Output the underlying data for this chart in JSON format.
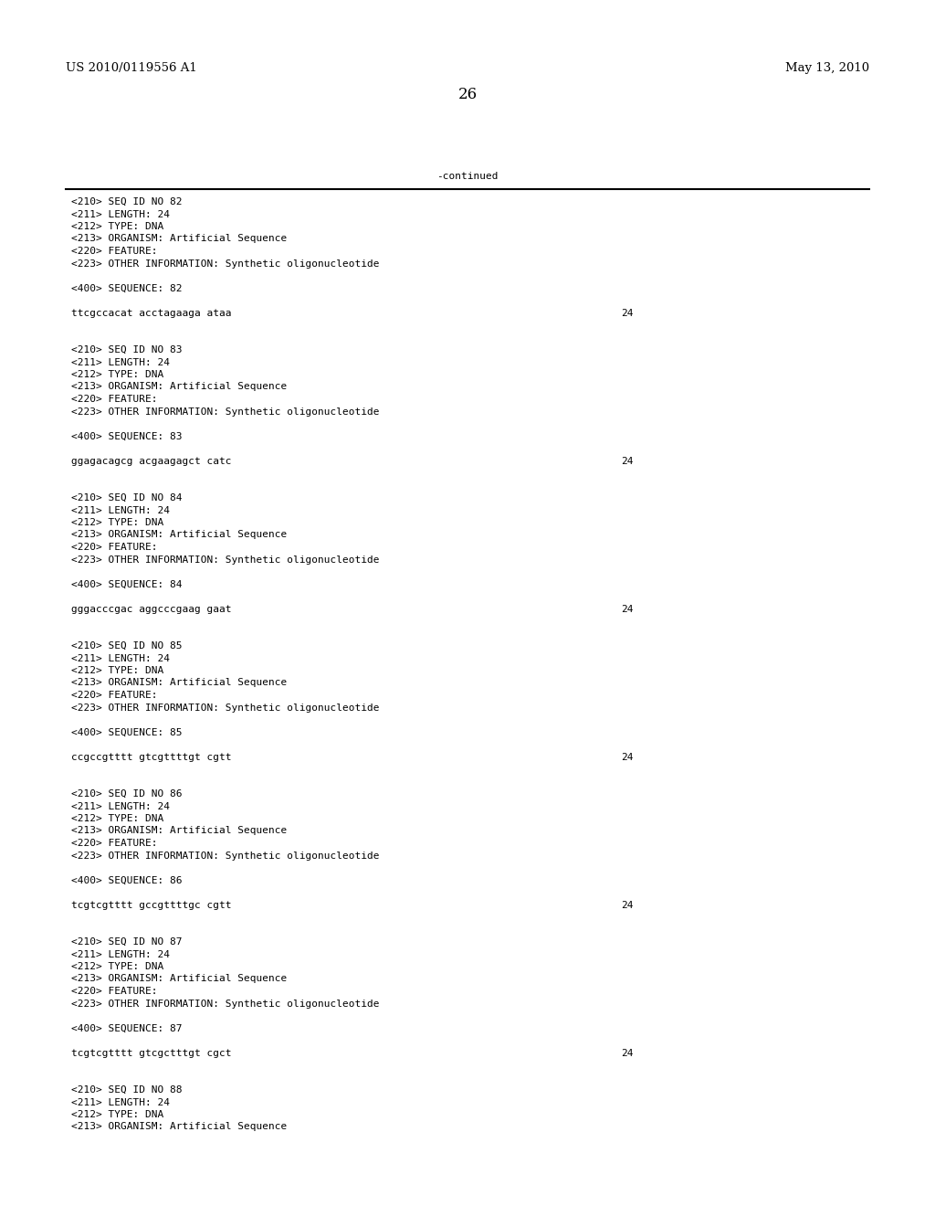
{
  "patent_left": "US 2010/0119556 A1",
  "patent_right": "May 13, 2010",
  "page_number": "26",
  "continued_label": "-continued",
  "background_color": "#ffffff",
  "text_color": "#000000",
  "header_fontsize": 9.5,
  "page_num_fontsize": 12,
  "body_fontsize": 8.0,
  "content": [
    {
      "text": "<210> SEQ ID NO 82",
      "seq_num": null
    },
    {
      "text": "<211> LENGTH: 24",
      "seq_num": null
    },
    {
      "text": "<212> TYPE: DNA",
      "seq_num": null
    },
    {
      "text": "<213> ORGANISM: Artificial Sequence",
      "seq_num": null
    },
    {
      "text": "<220> FEATURE:",
      "seq_num": null
    },
    {
      "text": "<223> OTHER INFORMATION: Synthetic oligonucleotide",
      "seq_num": null
    },
    {
      "text": "",
      "seq_num": null
    },
    {
      "text": "<400> SEQUENCE: 82",
      "seq_num": null
    },
    {
      "text": "",
      "seq_num": null
    },
    {
      "text": "ttcgccacat acctagaaga ataa",
      "seq_num": "24"
    },
    {
      "text": "",
      "seq_num": null
    },
    {
      "text": "",
      "seq_num": null
    },
    {
      "text": "<210> SEQ ID NO 83",
      "seq_num": null
    },
    {
      "text": "<211> LENGTH: 24",
      "seq_num": null
    },
    {
      "text": "<212> TYPE: DNA",
      "seq_num": null
    },
    {
      "text": "<213> ORGANISM: Artificial Sequence",
      "seq_num": null
    },
    {
      "text": "<220> FEATURE:",
      "seq_num": null
    },
    {
      "text": "<223> OTHER INFORMATION: Synthetic oligonucleotide",
      "seq_num": null
    },
    {
      "text": "",
      "seq_num": null
    },
    {
      "text": "<400> SEQUENCE: 83",
      "seq_num": null
    },
    {
      "text": "",
      "seq_num": null
    },
    {
      "text": "ggagacagcg acgaagagct catc",
      "seq_num": "24"
    },
    {
      "text": "",
      "seq_num": null
    },
    {
      "text": "",
      "seq_num": null
    },
    {
      "text": "<210> SEQ ID NO 84",
      "seq_num": null
    },
    {
      "text": "<211> LENGTH: 24",
      "seq_num": null
    },
    {
      "text": "<212> TYPE: DNA",
      "seq_num": null
    },
    {
      "text": "<213> ORGANISM: Artificial Sequence",
      "seq_num": null
    },
    {
      "text": "<220> FEATURE:",
      "seq_num": null
    },
    {
      "text": "<223> OTHER INFORMATION: Synthetic oligonucleotide",
      "seq_num": null
    },
    {
      "text": "",
      "seq_num": null
    },
    {
      "text": "<400> SEQUENCE: 84",
      "seq_num": null
    },
    {
      "text": "",
      "seq_num": null
    },
    {
      "text": "gggacccgac aggcccgaag gaat",
      "seq_num": "24"
    },
    {
      "text": "",
      "seq_num": null
    },
    {
      "text": "",
      "seq_num": null
    },
    {
      "text": "<210> SEQ ID NO 85",
      "seq_num": null
    },
    {
      "text": "<211> LENGTH: 24",
      "seq_num": null
    },
    {
      "text": "<212> TYPE: DNA",
      "seq_num": null
    },
    {
      "text": "<213> ORGANISM: Artificial Sequence",
      "seq_num": null
    },
    {
      "text": "<220> FEATURE:",
      "seq_num": null
    },
    {
      "text": "<223> OTHER INFORMATION: Synthetic oligonucleotide",
      "seq_num": null
    },
    {
      "text": "",
      "seq_num": null
    },
    {
      "text": "<400> SEQUENCE: 85",
      "seq_num": null
    },
    {
      "text": "",
      "seq_num": null
    },
    {
      "text": "ccgccgtttt gtcgttttgt cgtt",
      "seq_num": "24"
    },
    {
      "text": "",
      "seq_num": null
    },
    {
      "text": "",
      "seq_num": null
    },
    {
      "text": "<210> SEQ ID NO 86",
      "seq_num": null
    },
    {
      "text": "<211> LENGTH: 24",
      "seq_num": null
    },
    {
      "text": "<212> TYPE: DNA",
      "seq_num": null
    },
    {
      "text": "<213> ORGANISM: Artificial Sequence",
      "seq_num": null
    },
    {
      "text": "<220> FEATURE:",
      "seq_num": null
    },
    {
      "text": "<223> OTHER INFORMATION: Synthetic oligonucleotide",
      "seq_num": null
    },
    {
      "text": "",
      "seq_num": null
    },
    {
      "text": "<400> SEQUENCE: 86",
      "seq_num": null
    },
    {
      "text": "",
      "seq_num": null
    },
    {
      "text": "tcgtcgtttt gccgttttgc cgtt",
      "seq_num": "24"
    },
    {
      "text": "",
      "seq_num": null
    },
    {
      "text": "",
      "seq_num": null
    },
    {
      "text": "<210> SEQ ID NO 87",
      "seq_num": null
    },
    {
      "text": "<211> LENGTH: 24",
      "seq_num": null
    },
    {
      "text": "<212> TYPE: DNA",
      "seq_num": null
    },
    {
      "text": "<213> ORGANISM: Artificial Sequence",
      "seq_num": null
    },
    {
      "text": "<220> FEATURE:",
      "seq_num": null
    },
    {
      "text": "<223> OTHER INFORMATION: Synthetic oligonucleotide",
      "seq_num": null
    },
    {
      "text": "",
      "seq_num": null
    },
    {
      "text": "<400> SEQUENCE: 87",
      "seq_num": null
    },
    {
      "text": "",
      "seq_num": null
    },
    {
      "text": "tcgtcgtttt gtcgctttgt cgct",
      "seq_num": "24"
    },
    {
      "text": "",
      "seq_num": null
    },
    {
      "text": "",
      "seq_num": null
    },
    {
      "text": "<210> SEQ ID NO 88",
      "seq_num": null
    },
    {
      "text": "<211> LENGTH: 24",
      "seq_num": null
    },
    {
      "text": "<212> TYPE: DNA",
      "seq_num": null
    },
    {
      "text": "<213> ORGANISM: Artificial Sequence",
      "seq_num": null
    }
  ]
}
